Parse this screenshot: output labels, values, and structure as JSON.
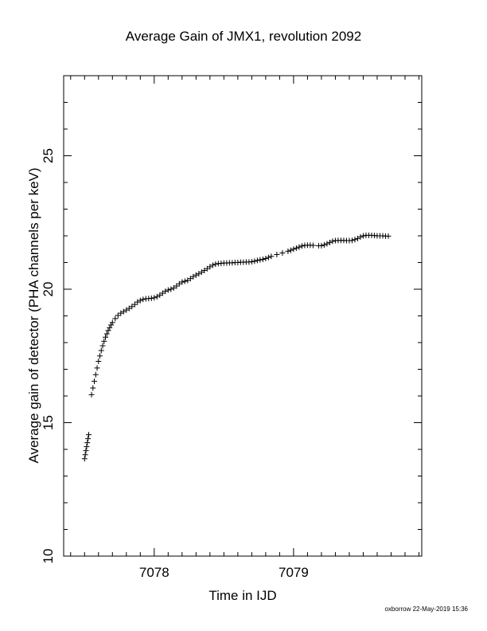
{
  "chart_data": {
    "type": "scatter",
    "title": "Average Gain of JMX1, revolution 2092",
    "xlabel": "Time in IJD",
    "ylabel": "Average gain of detector (PHA channels per keV)",
    "xlim": [
      7077.35,
      7079.92
    ],
    "ylim": [
      10,
      28
    ],
    "xticks": [
      7078,
      7079
    ],
    "xtick_labels": [
      "7078",
      "7079"
    ],
    "x_minor_step": 0.1,
    "yticks": [
      10,
      15,
      20,
      25
    ],
    "ytick_labels": [
      "10",
      "15",
      "20",
      "25"
    ],
    "y_minor_step": 1,
    "marker": "plus",
    "color": "#000000",
    "grid": false,
    "series": [
      {
        "points": [
          [
            7077.5,
            13.65
          ],
          [
            7077.505,
            13.8
          ],
          [
            7077.51,
            13.95
          ],
          [
            7077.515,
            14.1
          ],
          [
            7077.52,
            14.25
          ],
          [
            7077.525,
            14.4
          ],
          [
            7077.53,
            14.55
          ],
          [
            7077.55,
            16.05
          ],
          [
            7077.56,
            16.3
          ],
          [
            7077.57,
            16.55
          ],
          [
            7077.58,
            16.8
          ],
          [
            7077.59,
            17.05
          ],
          [
            7077.6,
            17.3
          ],
          [
            7077.61,
            17.5
          ],
          [
            7077.62,
            17.7
          ],
          [
            7077.63,
            17.88
          ],
          [
            7077.64,
            18.05
          ],
          [
            7077.65,
            18.2
          ],
          [
            7077.66,
            18.33
          ],
          [
            7077.67,
            18.45
          ],
          [
            7077.68,
            18.56
          ],
          [
            7077.69,
            18.66
          ],
          [
            7077.7,
            18.75
          ],
          [
            7077.72,
            18.9
          ],
          [
            7077.74,
            19.02
          ],
          [
            7077.76,
            19.1
          ],
          [
            7077.78,
            19.16
          ],
          [
            7077.8,
            19.22
          ],
          [
            7077.82,
            19.28
          ],
          [
            7077.84,
            19.35
          ],
          [
            7077.86,
            19.43
          ],
          [
            7077.88,
            19.52
          ],
          [
            7077.9,
            19.58
          ],
          [
            7077.92,
            19.62
          ],
          [
            7077.94,
            19.64
          ],
          [
            7077.96,
            19.65
          ],
          [
            7077.98,
            19.66
          ],
          [
            7078.0,
            19.68
          ],
          [
            7078.02,
            19.72
          ],
          [
            7078.04,
            19.78
          ],
          [
            7078.06,
            19.85
          ],
          [
            7078.08,
            19.92
          ],
          [
            7078.1,
            19.97
          ],
          [
            7078.12,
            20.0
          ],
          [
            7078.14,
            20.05
          ],
          [
            7078.16,
            20.12
          ],
          [
            7078.18,
            20.2
          ],
          [
            7078.2,
            20.27
          ],
          [
            7078.22,
            20.3
          ],
          [
            7078.24,
            20.33
          ],
          [
            7078.26,
            20.4
          ],
          [
            7078.28,
            20.47
          ],
          [
            7078.3,
            20.53
          ],
          [
            7078.32,
            20.58
          ],
          [
            7078.34,
            20.64
          ],
          [
            7078.36,
            20.7
          ],
          [
            7078.38,
            20.77
          ],
          [
            7078.4,
            20.84
          ],
          [
            7078.42,
            20.9
          ],
          [
            7078.44,
            20.94
          ],
          [
            7078.46,
            20.96
          ],
          [
            7078.48,
            20.97
          ],
          [
            7078.5,
            20.98
          ],
          [
            7078.52,
            20.98
          ],
          [
            7078.54,
            20.99
          ],
          [
            7078.56,
            20.99
          ],
          [
            7078.58,
            21.0
          ],
          [
            7078.6,
            21.0
          ],
          [
            7078.62,
            21.01
          ],
          [
            7078.64,
            21.01
          ],
          [
            7078.66,
            21.02
          ],
          [
            7078.68,
            21.02
          ],
          [
            7078.7,
            21.03
          ],
          [
            7078.72,
            21.05
          ],
          [
            7078.74,
            21.08
          ],
          [
            7078.76,
            21.1
          ],
          [
            7078.78,
            21.12
          ],
          [
            7078.8,
            21.15
          ],
          [
            7078.82,
            21.19
          ],
          [
            7078.84,
            21.23
          ],
          [
            7078.88,
            21.3
          ],
          [
            7078.92,
            21.36
          ],
          [
            7078.96,
            21.42
          ],
          [
            7078.98,
            21.46
          ],
          [
            7079.0,
            21.5
          ],
          [
            7079.02,
            21.54
          ],
          [
            7079.04,
            21.58
          ],
          [
            7079.06,
            21.62
          ],
          [
            7079.08,
            21.64
          ],
          [
            7079.1,
            21.65
          ],
          [
            7079.12,
            21.65
          ],
          [
            7079.14,
            21.64
          ],
          [
            7079.18,
            21.63
          ],
          [
            7079.2,
            21.63
          ],
          [
            7079.22,
            21.66
          ],
          [
            7079.24,
            21.7
          ],
          [
            7079.26,
            21.75
          ],
          [
            7079.28,
            21.8
          ],
          [
            7079.3,
            21.82
          ],
          [
            7079.32,
            21.83
          ],
          [
            7079.34,
            21.83
          ],
          [
            7079.36,
            21.83
          ],
          [
            7079.38,
            21.82
          ],
          [
            7079.4,
            21.82
          ],
          [
            7079.42,
            21.83
          ],
          [
            7079.44,
            21.86
          ],
          [
            7079.46,
            21.9
          ],
          [
            7079.48,
            21.96
          ],
          [
            7079.5,
            22.0
          ],
          [
            7079.52,
            22.02
          ],
          [
            7079.54,
            22.02
          ],
          [
            7079.56,
            22.02
          ],
          [
            7079.58,
            22.01
          ],
          [
            7079.6,
            22.0
          ],
          [
            7079.62,
            22.0
          ],
          [
            7079.64,
            22.0
          ],
          [
            7079.66,
            21.99
          ],
          [
            7079.68,
            21.99
          ]
        ]
      }
    ]
  },
  "footer": {
    "credit": "oxborrow 22-May-2019 15:36"
  }
}
